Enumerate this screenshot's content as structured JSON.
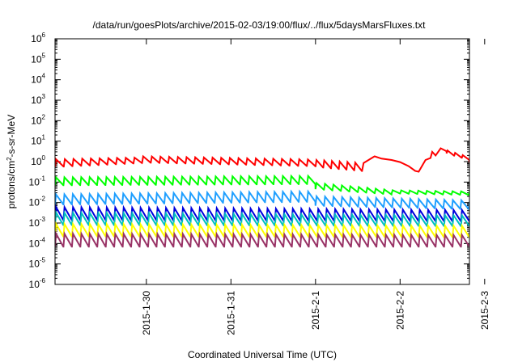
{
  "chart_data": {
    "type": "line",
    "title": "/data/run/goesPlots/archive/2015-02-03/19:00/flux/../flux/5daysMarsFluxes.txt",
    "xlabel": "Coordinated Universal Time (UTC)",
    "ylabel_parts": {
      "base": "protons/cm",
      "sup": "2",
      "rest": "-s-sr-MeV"
    },
    "yscale": "log",
    "ylim_exp": [
      -6,
      6
    ],
    "ytick_exponents": [
      -6,
      -5,
      -4,
      -3,
      -2,
      -1,
      0,
      1,
      2,
      3,
      4,
      5,
      6
    ],
    "ytick_base": "10",
    "xlim_days": [
      -1.08,
      3.82
    ],
    "xticks": [
      {
        "label": "2015-1-30",
        "day": 0
      },
      {
        "label": "2015-1-31",
        "day": 1
      },
      {
        "label": "2015-2-1",
        "day": 2
      },
      {
        "label": "2015-2-2",
        "day": 3
      },
      {
        "label": "2015-2-3",
        "day": 4
      }
    ],
    "grid": false,
    "legend": "none",
    "series": [
      {
        "color": "#ff0000",
        "segments": [
          {
            "x": [
              -1.08,
              -0.05
            ],
            "peak": [
              1.3,
              1.6
            ],
            "trough": [
              0.55,
              0.85
            ],
            "period": 0.1
          },
          {
            "x": [
              -0.05,
              2.0
            ],
            "peak": [
              1.8,
              1.25
            ],
            "trough": [
              0.9,
              0.6
            ],
            "period": 0.1
          },
          {
            "x": [
              2.0,
              2.55
            ],
            "peak": [
              1.2,
              0.85
            ],
            "trough": [
              0.55,
              0.35
            ],
            "period": 0.09
          },
          {
            "x": [
              2.55,
              2.7
            ],
            "peak": [
              0.85,
              1.8
            ],
            "trough": [
              0.35,
              1.8
            ],
            "period": 0.15
          },
          {
            "x": [
              2.7,
              3.2
            ],
            "points": [
              [
                2.7,
                1.8
              ],
              [
                2.78,
                1.4
              ],
              [
                2.9,
                1.2
              ],
              [
                3.0,
                0.95
              ],
              [
                3.1,
                0.6
              ],
              [
                3.18,
                0.35
              ],
              [
                3.22,
                0.32
              ]
            ]
          },
          {
            "x": [
              3.22,
              3.42
            ],
            "points": [
              [
                3.22,
                0.32
              ],
              [
                3.3,
                1.2
              ],
              [
                3.36,
                1.5
              ],
              [
                3.38,
                3.0
              ],
              [
                3.42,
                2.0
              ]
            ]
          },
          {
            "x": [
              3.42,
              3.55
            ],
            "points": [
              [
                3.42,
                2.0
              ],
              [
                3.48,
                4.5
              ],
              [
                3.55,
                3.2
              ]
            ]
          },
          {
            "x": [
              3.55,
              3.82
            ],
            "peak": [
              3.5,
              1.6
            ],
            "trough": [
              2.5,
              1.2
            ],
            "period": 0.09
          },
          {
            "x": [
              3.82,
              4.72
            ],
            "peak": [
              1.6,
              1.2
            ],
            "trough": [
              0.9,
              0.75
            ],
            "period": 0.1
          }
        ]
      },
      {
        "color": "#00ff00",
        "segments": [
          {
            "x": [
              -1.08,
              2.0
            ],
            "peak": [
              0.17,
              0.2
            ],
            "trough": [
              0.07,
              0.08
            ],
            "period": 0.1
          },
          {
            "x": [
              2.0,
              2.9
            ],
            "peak": [
              0.09,
              0.04
            ],
            "trough": [
              0.045,
              0.025
            ],
            "period": 0.1
          },
          {
            "x": [
              2.9,
              4.72
            ],
            "peak": [
              0.04,
              0.03
            ],
            "trough": [
              0.028,
              0.02
            ],
            "period": 0.1
          }
        ]
      },
      {
        "color": "#1f9fff",
        "segments": [
          {
            "x": [
              -1.08,
              2.0
            ],
            "peak": [
              0.025,
              0.035
            ],
            "trough": [
              0.008,
              0.011
            ],
            "period": 0.1
          },
          {
            "x": [
              2.0,
              4.72
            ],
            "peak": [
              0.02,
              0.01
            ],
            "trough": [
              0.007,
              0.004
            ],
            "period": 0.1
          }
        ]
      },
      {
        "color": "#0000dd",
        "segments": [
          {
            "x": [
              -1.08,
              4.72
            ],
            "peak": [
              0.006,
              0.004
            ],
            "trough": [
              0.0014,
              0.0012
            ],
            "period": 0.1
          }
        ]
      },
      {
        "color": "#00bfbf",
        "segments": [
          {
            "x": [
              -1.08,
              4.72
            ],
            "peak": [
              0.0032,
              0.0022
            ],
            "trough": [
              0.0008,
              0.0007
            ],
            "period": 0.1
          }
        ]
      },
      {
        "color": "#ffff00",
        "segments": [
          {
            "x": [
              -1.08,
              4.72
            ],
            "peak": [
              0.0009,
              0.0007
            ],
            "trough": [
              0.00022,
              0.0002
            ],
            "period": 0.1
          }
        ]
      },
      {
        "color": "#993366",
        "segments": [
          {
            "x": [
              -1.08,
              4.72
            ],
            "peak": [
              0.0003,
              0.00025
            ],
            "trough": [
              7e-05,
              7e-05
            ],
            "period": 0.1
          }
        ]
      }
    ]
  }
}
